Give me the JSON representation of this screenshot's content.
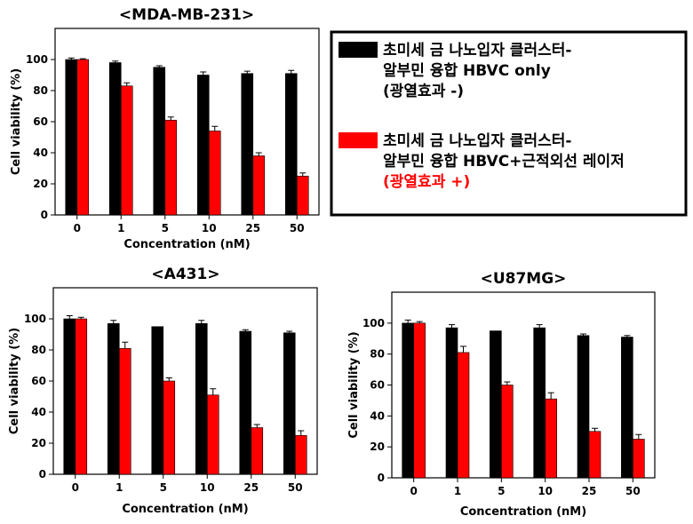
{
  "legend": {
    "entries": [
      {
        "color": "#000000",
        "text_color": "#000000",
        "lines": [
          "초미세 금 나노입자 클러스터-",
          "알부민 융합 HBVC only",
          "(광열효과 -)"
        ]
      },
      {
        "color": "#ff0000",
        "text_color": "#000000",
        "last_line_color": "#ff0000",
        "lines": [
          "초미세 금 나노입자 클러스터-",
          "알부민 융합 HBVC+근적외선 레이저",
          "(광열효과 +)"
        ]
      }
    ]
  },
  "chart_data": [
    {
      "type": "bar",
      "title": "<MDA-MB-231>",
      "xlabel": "Concentration (nM)",
      "ylabel": "Cell viability (%)",
      "ylim": [
        0,
        120
      ],
      "yticks": [
        0,
        20,
        40,
        60,
        80,
        100
      ],
      "categories": [
        "0",
        "1",
        "5",
        "10",
        "25",
        "50"
      ],
      "series": [
        {
          "color": "#000000",
          "values": [
            100,
            98,
            95,
            90,
            91,
            91
          ],
          "errors": [
            1,
            1,
            1,
            2,
            1.5,
            2
          ]
        },
        {
          "color": "#ff0000",
          "values": [
            100,
            83,
            61,
            54,
            38,
            25
          ],
          "errors": [
            0.5,
            2,
            2,
            3,
            2,
            2
          ]
        }
      ]
    },
    {
      "type": "bar",
      "title": "<A431>",
      "xlabel": "Concentration (nM)",
      "ylabel": "Cell viability (%)",
      "ylim": [
        0,
        120
      ],
      "yticks": [
        0,
        20,
        40,
        60,
        80,
        100
      ],
      "categories": [
        "0",
        "1",
        "5",
        "10",
        "25",
        "50"
      ],
      "series": [
        {
          "color": "#000000",
          "values": [
            100,
            97,
            95,
            97,
            92,
            91
          ],
          "errors": [
            2,
            2,
            0,
            2,
            1,
            1
          ]
        },
        {
          "color": "#ff0000",
          "values": [
            100,
            81,
            60,
            51,
            30,
            25
          ],
          "errors": [
            1,
            4,
            2,
            4,
            2,
            3
          ]
        }
      ]
    },
    {
      "type": "bar",
      "title": "<U87MG>",
      "xlabel": "Concentration (nM)",
      "ylabel": "Cell viability (%)",
      "ylim": [
        0,
        120
      ],
      "yticks": [
        0,
        20,
        40,
        60,
        80,
        100
      ],
      "categories": [
        "0",
        "1",
        "5",
        "10",
        "25",
        "50"
      ],
      "series": [
        {
          "color": "#000000",
          "values": [
            100,
            97,
            95,
            97,
            92,
            91
          ],
          "errors": [
            2,
            2,
            0,
            2,
            1,
            1
          ]
        },
        {
          "color": "#ff0000",
          "values": [
            100,
            81,
            60,
            51,
            30,
            25
          ],
          "errors": [
            1,
            4,
            2,
            4,
            2,
            3
          ]
        }
      ]
    }
  ]
}
